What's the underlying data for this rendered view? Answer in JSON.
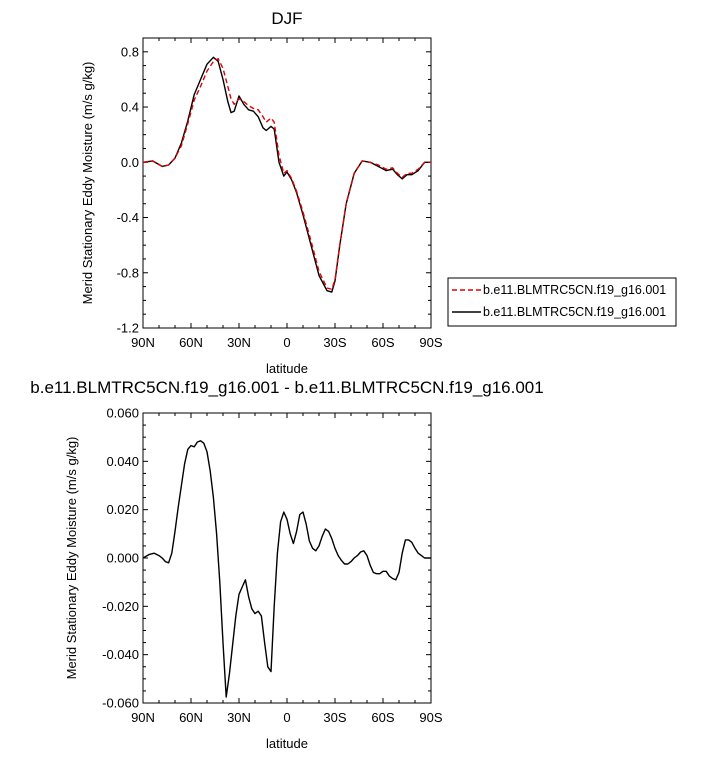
{
  "chart_data": [
    {
      "type": "line",
      "title": "DJF",
      "xlabel": "latitude",
      "ylabel": "Merid Stationary Eddy Moisture (m/s g/kg)",
      "xlim": [
        90,
        -90
      ],
      "ylim": [
        -1.2,
        0.9
      ],
      "x_ticks": [
        "90N",
        "60N",
        "30N",
        "0",
        "30S",
        "60S",
        "90S"
      ],
      "y_ticks": [
        "-1.2",
        "-0.8",
        "-0.4",
        "0.0",
        "0.4",
        "0.8"
      ],
      "legend_position": "right",
      "series": [
        {
          "name": "b.e11.BLMTRC5CN.f19_g16.001",
          "color": "#e00000",
          "dash": "dashed",
          "x": [
            90,
            84,
            78,
            74,
            70,
            66,
            62,
            58,
            54,
            50,
            46,
            43,
            40,
            37,
            35,
            33,
            30,
            27,
            24,
            21,
            18,
            15,
            13,
            10,
            8,
            5,
            2,
            0,
            -3,
            -6,
            -10,
            -15,
            -20,
            -25,
            -28,
            -30,
            -33,
            -37,
            -42,
            -47,
            -52,
            -57,
            -62,
            -66,
            -69,
            -72,
            -75,
            -78,
            -82,
            -86,
            -90
          ],
          "y": [
            0.0,
            0.01,
            -0.03,
            -0.02,
            0.03,
            0.12,
            0.28,
            0.45,
            0.55,
            0.66,
            0.73,
            0.75,
            0.68,
            0.55,
            0.46,
            0.42,
            0.46,
            0.44,
            0.41,
            0.39,
            0.38,
            0.33,
            0.29,
            0.32,
            0.29,
            0.05,
            -0.08,
            -0.06,
            -0.12,
            -0.21,
            -0.36,
            -0.57,
            -0.79,
            -0.91,
            -0.92,
            -0.85,
            -0.6,
            -0.3,
            -0.08,
            0.01,
            0.0,
            -0.02,
            -0.05,
            -0.04,
            -0.08,
            -0.11,
            -0.08,
            -0.08,
            -0.05,
            0.0,
            0.0
          ]
        },
        {
          "name": "b.e11.BLMTRC5CN.f19_g16.001",
          "color": "#000000",
          "dash": "solid",
          "x": [
            90,
            84,
            78,
            74,
            70,
            66,
            62,
            58,
            54,
            50,
            46,
            43,
            40,
            37,
            35,
            33,
            30,
            27,
            24,
            21,
            18,
            15,
            13,
            10,
            8,
            5,
            2,
            0,
            -3,
            -6,
            -10,
            -15,
            -20,
            -25,
            -28,
            -30,
            -33,
            -37,
            -42,
            -47,
            -52,
            -57,
            -62,
            -66,
            -69,
            -72,
            -75,
            -78,
            -82,
            -86,
            -90
          ],
          "y": [
            0.0,
            0.01,
            -0.03,
            -0.02,
            0.03,
            0.14,
            0.3,
            0.49,
            0.6,
            0.71,
            0.76,
            0.73,
            0.6,
            0.44,
            0.36,
            0.37,
            0.48,
            0.42,
            0.38,
            0.37,
            0.33,
            0.25,
            0.23,
            0.26,
            0.24,
            0.0,
            -0.1,
            -0.07,
            -0.13,
            -0.22,
            -0.38,
            -0.6,
            -0.82,
            -0.93,
            -0.94,
            -0.86,
            -0.6,
            -0.3,
            -0.08,
            0.01,
            0.0,
            -0.03,
            -0.06,
            -0.05,
            -0.09,
            -0.12,
            -0.09,
            -0.09,
            -0.06,
            0.0,
            0.0
          ]
        }
      ]
    },
    {
      "type": "line",
      "title": "b.e11.BLMTRC5CN.f19_g16.001 - b.e11.BLMTRC5CN.f19_g16.001",
      "xlabel": "latitude",
      "ylabel": "Merid Stationary Eddy Moisture (m/s g/kg)",
      "xlim": [
        90,
        -90
      ],
      "ylim": [
        -0.06,
        0.06
      ],
      "x_ticks": [
        "90N",
        "60N",
        "30N",
        "0",
        "30S",
        "60S",
        "90S"
      ],
      "y_ticks": [
        "-0.060",
        "-0.040",
        "-0.020",
        "0.000",
        "0.020",
        "0.040",
        "0.060"
      ],
      "series": [
        {
          "color": "#000000",
          "dash": "solid",
          "x": [
            90,
            86,
            83,
            80,
            78,
            76,
            74,
            72,
            70,
            68,
            66,
            64,
            62,
            60,
            58,
            56,
            54,
            52,
            50,
            48,
            46,
            44,
            42,
            40,
            38,
            36,
            34,
            32,
            30,
            28,
            26,
            24,
            22,
            20,
            18,
            16,
            14,
            12,
            10,
            8,
            6,
            4,
            2,
            0,
            -2,
            -4,
            -6,
            -8,
            -10,
            -12,
            -14,
            -16,
            -18,
            -20,
            -22,
            -24,
            -26,
            -28,
            -30,
            -32,
            -34,
            -36,
            -38,
            -40,
            -42,
            -44,
            -46,
            -48,
            -50,
            -52,
            -54,
            -56,
            -58,
            -60,
            -62,
            -64,
            -66,
            -68,
            -70,
            -72,
            -74,
            -76,
            -78,
            -80,
            -82,
            -84,
            -86,
            -88,
            -90
          ],
          "y": [
            0.0,
            0.0015,
            0.002,
            0.001,
            0.0,
            -0.0015,
            -0.002,
            0.002,
            0.011,
            0.021,
            0.03,
            0.039,
            0.045,
            0.0465,
            0.046,
            0.048,
            0.0485,
            0.0475,
            0.044,
            0.036,
            0.025,
            0.01,
            -0.01,
            -0.035,
            -0.0575,
            -0.048,
            -0.036,
            -0.024,
            -0.015,
            -0.012,
            -0.009,
            -0.016,
            -0.021,
            -0.023,
            -0.022,
            -0.024,
            -0.035,
            -0.045,
            -0.047,
            -0.02,
            0.002,
            0.015,
            0.019,
            0.016,
            0.01,
            0.006,
            0.011,
            0.018,
            0.019,
            0.014,
            0.007,
            0.004,
            0.003,
            0.005,
            0.009,
            0.012,
            0.011,
            0.008,
            0.004,
            0.001,
            -0.001,
            -0.0025,
            -0.0025,
            -0.0015,
            0.0,
            0.001,
            0.0025,
            0.003,
            0.001,
            -0.003,
            -0.006,
            -0.0065,
            -0.0065,
            -0.0055,
            -0.0055,
            -0.0075,
            -0.0085,
            -0.009,
            -0.006,
            0.002,
            0.0075,
            0.0075,
            0.0065,
            0.004,
            0.002,
            0.001,
            0.0,
            0.0,
            0.0
          ]
        }
      ]
    }
  ]
}
